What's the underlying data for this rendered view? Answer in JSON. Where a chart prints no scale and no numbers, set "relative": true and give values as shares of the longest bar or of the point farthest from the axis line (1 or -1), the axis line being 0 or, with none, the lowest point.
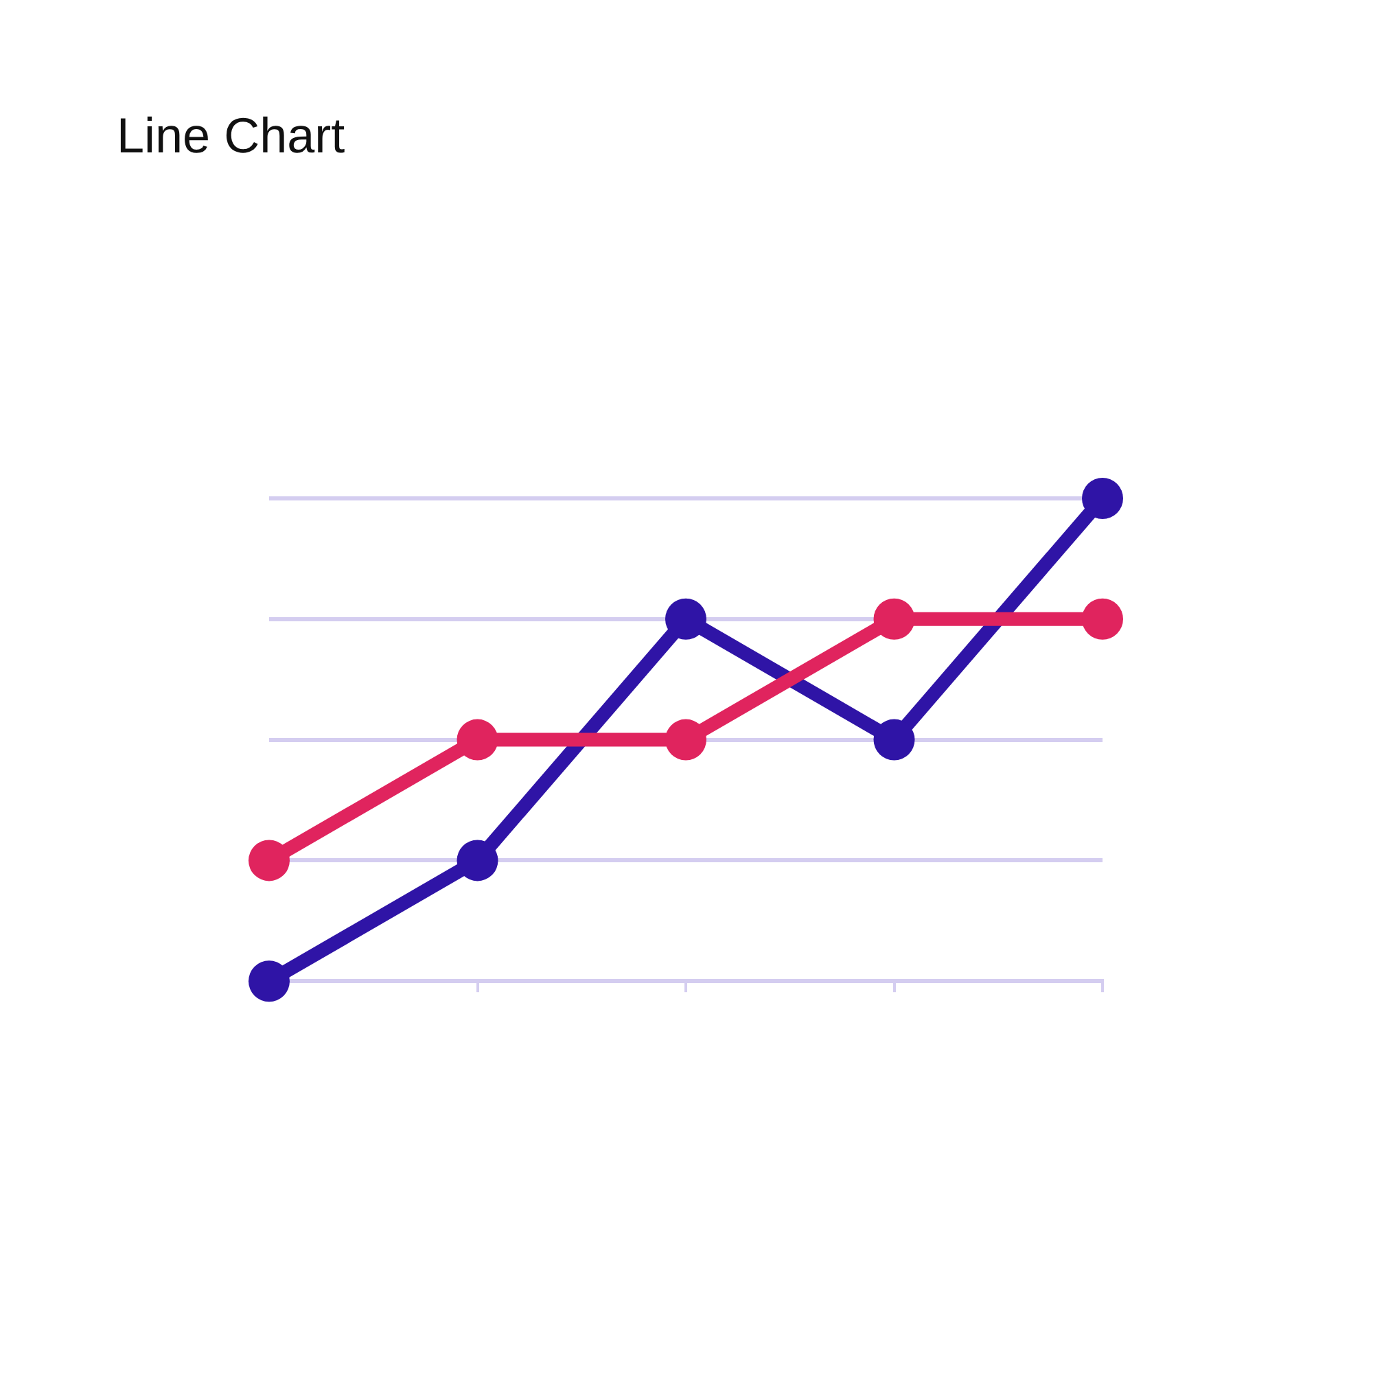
{
  "chart_data": {
    "type": "line",
    "title": "Line Chart",
    "relative": true,
    "categories": [
      null,
      null,
      null,
      null,
      null
    ],
    "series": [
      {
        "color": "#e0245e",
        "values": [
          0.25,
          0.5,
          0.5,
          0.75,
          0.75
        ]
      },
      {
        "color": "#2f14a6",
        "values": [
          0,
          0.25,
          0.75,
          0.5,
          1
        ]
      }
    ],
    "grid": "y",
    "legend": false,
    "marker": "circle",
    "line_style": "solid"
  }
}
